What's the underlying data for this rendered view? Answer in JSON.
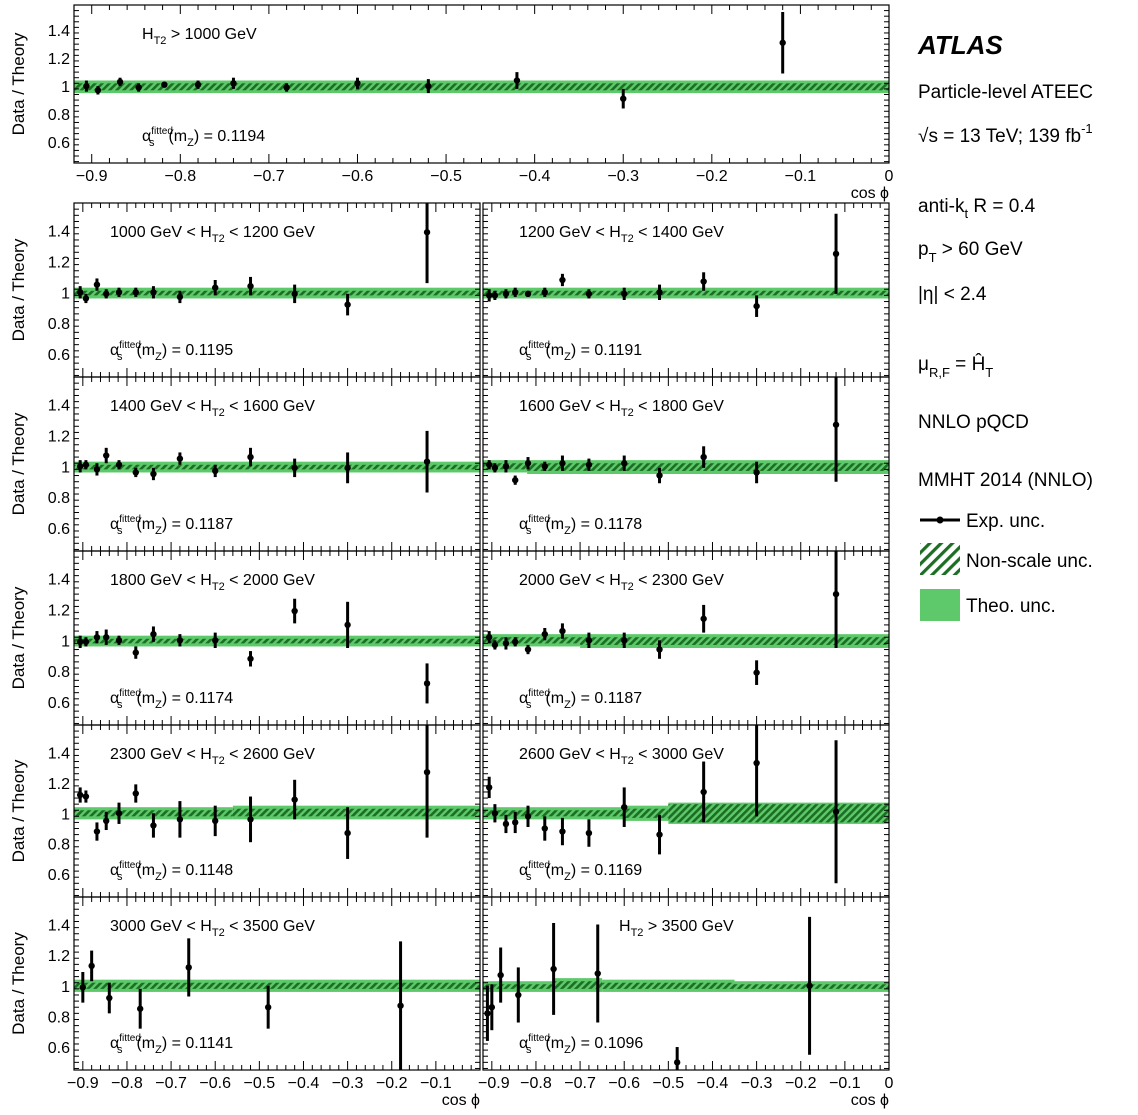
{
  "chart_data": {
    "type": "scatter",
    "experiment": "ATLAS",
    "xlabel": "cos ϕ",
    "ylabel": "Data / Theory",
    "xlim": [
      -0.92,
      0.0
    ],
    "ylim": [
      0.45,
      1.58
    ],
    "x_ticks": [
      -0.9,
      -0.8,
      -0.7,
      -0.6,
      -0.5,
      -0.4,
      -0.3,
      -0.2,
      -0.1,
      0
    ],
    "x_tick_labels": [
      "−0.9",
      "−0.8",
      "−0.7",
      "−0.6",
      "−0.5",
      "−0.4",
      "−0.3",
      "−0.2",
      "−0.1",
      "0"
    ],
    "y_ticks": [
      0.6,
      0.8,
      1.0,
      1.2,
      1.4
    ],
    "y_tick_labels": [
      "0.6",
      "0.8",
      "1",
      "1.2",
      "1.4"
    ],
    "info_lines": {
      "process": "Particle-level ATEEC",
      "sqrt": "√",
      "energy": "s = 13 TeV; 139 fb",
      "lumi_exp": "-1",
      "jet_algo": "anti-k",
      "jet_algo_sub": "t",
      "jet_radius": " R = 0.4",
      "pt": "p",
      "pt_sub": "T",
      "pt_cut": " > 60 GeV",
      "eta_cut": "|η| < 2.4",
      "scale_mu": "μ",
      "scale_sub": "R,F",
      "scale_eq": " = ",
      "scale_ht": "Ĥ",
      "scale_ht_sub": "T",
      "order": "NNLO pQCD",
      "pdf": "MMHT 2014 (NNLO)"
    },
    "legend": [
      {
        "label": "Exp. unc.",
        "style": "marker"
      },
      {
        "label": "Non-scale unc.",
        "style": "hatch"
      },
      {
        "label": "Theo. unc.",
        "style": "fill"
      }
    ],
    "colors": {
      "theo_band": "#5ec96a",
      "hatch": "#1b6e24",
      "marker": "#000000"
    },
    "alpha_label": {
      "symbol": "α",
      "sub": "s",
      "sup": "fitted",
      "arg_open": "(m",
      "arg_sub": "Z",
      "arg_close": ")"
    },
    "panels": [
      {
        "label_pre": "H",
        "label_sub": "T2",
        "label_post": " > 1000 GeV",
        "alpha_value": " = 0.1194",
        "band": [
          [
            -0.92,
            0.95,
            1.04,
            0.97,
            1.02
          ]
        ],
        "points": [
          [
            -0.906,
            1.0,
            0.04
          ],
          [
            -0.893,
            0.97,
            0.03
          ],
          [
            -0.868,
            1.03,
            0.03
          ],
          [
            -0.847,
            0.99,
            0.03
          ],
          [
            -0.818,
            1.01,
            0.02
          ],
          [
            -0.78,
            1.01,
            0.03
          ],
          [
            -0.74,
            1.02,
            0.04
          ],
          [
            -0.68,
            0.99,
            0.03
          ],
          [
            -0.6,
            1.02,
            0.04
          ],
          [
            -0.52,
            1.0,
            0.05
          ],
          [
            -0.42,
            1.04,
            0.06
          ],
          [
            -0.3,
            0.91,
            0.07
          ],
          [
            -0.12,
            1.31,
            0.22
          ]
        ]
      },
      {
        "label_pre": "1000 GeV < H",
        "label_sub": "T2",
        "label_post": " < 1200 GeV",
        "alpha_value": " = 0.1195",
        "band": [
          [
            -0.92,
            0.96,
            1.03,
            0.98,
            1.01
          ]
        ],
        "points": [
          [
            -0.906,
            1.0,
            0.04
          ],
          [
            -0.893,
            0.96,
            0.03
          ],
          [
            -0.868,
            1.05,
            0.04
          ],
          [
            -0.847,
            0.99,
            0.03
          ],
          [
            -0.818,
            1.0,
            0.03
          ],
          [
            -0.78,
            1.0,
            0.03
          ],
          [
            -0.74,
            1.0,
            0.04
          ],
          [
            -0.68,
            0.97,
            0.04
          ],
          [
            -0.6,
            1.03,
            0.05
          ],
          [
            -0.52,
            1.04,
            0.06
          ],
          [
            -0.42,
            0.99,
            0.06
          ],
          [
            -0.3,
            0.92,
            0.07
          ],
          [
            -0.12,
            1.39,
            0.33
          ]
        ]
      },
      {
        "label_pre": "1200 GeV < H",
        "label_sub": "T2",
        "label_post": " < 1400 GeV",
        "alpha_value": " = 0.1191",
        "band": [
          [
            -0.92,
            0.96,
            1.03,
            0.98,
            1.01
          ]
        ],
        "points": [
          [
            -0.906,
            0.98,
            0.04
          ],
          [
            -0.893,
            0.98,
            0.03
          ],
          [
            -0.868,
            0.99,
            0.03
          ],
          [
            -0.847,
            1.0,
            0.03
          ],
          [
            -0.818,
            0.99,
            0.02
          ],
          [
            -0.78,
            1.0,
            0.03
          ],
          [
            -0.74,
            1.08,
            0.04
          ],
          [
            -0.68,
            0.99,
            0.03
          ],
          [
            -0.6,
            0.99,
            0.04
          ],
          [
            -0.52,
            1.0,
            0.05
          ],
          [
            -0.42,
            1.07,
            0.06
          ],
          [
            -0.3,
            0.91,
            0.07
          ],
          [
            -0.12,
            1.25,
            0.26
          ]
        ]
      },
      {
        "label_pre": "1400 GeV < H",
        "label_sub": "T2",
        "label_post": " < 1600 GeV",
        "alpha_value": " = 0.1187",
        "band": [
          [
            -0.92,
            0.96,
            1.03,
            0.98,
            1.01
          ]
        ],
        "points": [
          [
            -0.906,
            1.0,
            0.04
          ],
          [
            -0.893,
            1.01,
            0.03
          ],
          [
            -0.868,
            0.98,
            0.04
          ],
          [
            -0.847,
            1.07,
            0.05
          ],
          [
            -0.818,
            1.01,
            0.03
          ],
          [
            -0.78,
            0.96,
            0.03
          ],
          [
            -0.74,
            0.95,
            0.04
          ],
          [
            -0.68,
            1.05,
            0.04
          ],
          [
            -0.6,
            0.97,
            0.04
          ],
          [
            -0.52,
            1.06,
            0.06
          ],
          [
            -0.42,
            0.99,
            0.06
          ],
          [
            -0.3,
            0.99,
            0.1
          ],
          [
            -0.12,
            1.03,
            0.2
          ]
        ]
      },
      {
        "label_pre": "1600 GeV < H",
        "label_sub": "T2",
        "label_post": " < 1800 GeV",
        "alpha_value": " = 0.1178",
        "band": [
          [
            -0.92,
            0.96,
            1.04,
            0.98,
            1.02
          ],
          [
            -0.82,
            0.95,
            1.04,
            0.97,
            1.02
          ]
        ],
        "points": [
          [
            -0.906,
            1.01,
            0.03
          ],
          [
            -0.893,
            0.99,
            0.03
          ],
          [
            -0.868,
            1.0,
            0.04
          ],
          [
            -0.847,
            0.91,
            0.03
          ],
          [
            -0.818,
            1.02,
            0.04
          ],
          [
            -0.78,
            1.0,
            0.03
          ],
          [
            -0.74,
            1.02,
            0.05
          ],
          [
            -0.68,
            1.01,
            0.04
          ],
          [
            -0.6,
            1.02,
            0.05
          ],
          [
            -0.52,
            0.94,
            0.05
          ],
          [
            -0.42,
            1.06,
            0.07
          ],
          [
            -0.3,
            0.96,
            0.07
          ],
          [
            -0.12,
            1.27,
            0.37
          ]
        ]
      },
      {
        "label_pre": "1800 GeV < H",
        "label_sub": "T2",
        "label_post": " < 2000 GeV",
        "alpha_value": " = 0.1174",
        "band": [
          [
            -0.92,
            0.96,
            1.03,
            0.98,
            1.01
          ]
        ],
        "points": [
          [
            -0.906,
            0.99,
            0.04
          ],
          [
            -0.893,
            0.99,
            0.03
          ],
          [
            -0.868,
            1.02,
            0.04
          ],
          [
            -0.847,
            1.02,
            0.05
          ],
          [
            -0.818,
            1.0,
            0.03
          ],
          [
            -0.78,
            0.92,
            0.04
          ],
          [
            -0.74,
            1.04,
            0.05
          ],
          [
            -0.68,
            1.0,
            0.04
          ],
          [
            -0.6,
            1.0,
            0.05
          ],
          [
            -0.52,
            0.88,
            0.05
          ],
          [
            -0.42,
            1.19,
            0.08
          ],
          [
            -0.3,
            1.1,
            0.15
          ],
          [
            -0.12,
            0.72,
            0.13
          ]
        ]
      },
      {
        "label_pre": "2000 GeV < H",
        "label_sub": "T2",
        "label_post": " < 2300 GeV",
        "alpha_value": " = 0.1187",
        "band": [
          [
            -0.92,
            0.96,
            1.04,
            0.98,
            1.02
          ],
          [
            -0.7,
            0.95,
            1.04,
            0.97,
            1.02
          ]
        ],
        "points": [
          [
            -0.906,
            1.02,
            0.04
          ],
          [
            -0.893,
            0.97,
            0.03
          ],
          [
            -0.868,
            0.98,
            0.04
          ],
          [
            -0.847,
            0.99,
            0.03
          ],
          [
            -0.818,
            0.94,
            0.03
          ],
          [
            -0.78,
            1.04,
            0.04
          ],
          [
            -0.74,
            1.06,
            0.05
          ],
          [
            -0.68,
            1.0,
            0.05
          ],
          [
            -0.6,
            1.0,
            0.05
          ],
          [
            -0.52,
            0.94,
            0.06
          ],
          [
            -0.42,
            1.14,
            0.09
          ],
          [
            -0.3,
            0.79,
            0.08
          ],
          [
            -0.12,
            1.3,
            0.35
          ]
        ]
      },
      {
        "label_pre": "2300 GeV < H",
        "label_sub": "T2",
        "label_post": " < 2600 GeV",
        "alpha_value": " = 0.1148",
        "band": [
          [
            -0.92,
            0.96,
            1.04,
            0.98,
            1.02
          ],
          [
            -0.56,
            0.96,
            1.05,
            0.98,
            1.03
          ]
        ],
        "points": [
          [
            -0.906,
            1.12,
            0.05
          ],
          [
            -0.893,
            1.11,
            0.04
          ],
          [
            -0.868,
            0.88,
            0.06
          ],
          [
            -0.847,
            0.95,
            0.06
          ],
          [
            -0.818,
            1.0,
            0.07
          ],
          [
            -0.78,
            1.13,
            0.06
          ],
          [
            -0.74,
            0.92,
            0.08
          ],
          [
            -0.68,
            0.96,
            0.12
          ],
          [
            -0.6,
            0.95,
            0.1
          ],
          [
            -0.52,
            0.96,
            0.15
          ],
          [
            -0.42,
            1.09,
            0.13
          ],
          [
            -0.3,
            0.87,
            0.17
          ],
          [
            -0.12,
            1.27,
            0.43
          ]
        ]
      },
      {
        "label_pre": "2600 GeV < H",
        "label_sub": "T2",
        "label_post": " < 3000 GeV",
        "alpha_value": " = 0.1169",
        "band": [
          [
            -0.92,
            0.96,
            1.04,
            0.98,
            1.02
          ],
          [
            -0.6,
            0.95,
            1.05,
            0.97,
            1.03
          ],
          [
            -0.5,
            0.93,
            1.07,
            0.94,
            1.06
          ]
        ],
        "points": [
          [
            -0.906,
            1.17,
            0.07
          ],
          [
            -0.893,
            1.0,
            0.06
          ],
          [
            -0.868,
            0.93,
            0.06
          ],
          [
            -0.847,
            0.94,
            0.07
          ],
          [
            -0.818,
            0.98,
            0.07
          ],
          [
            -0.78,
            0.9,
            0.08
          ],
          [
            -0.74,
            0.88,
            0.09
          ],
          [
            -0.68,
            0.87,
            0.09
          ],
          [
            -0.6,
            1.04,
            0.13
          ],
          [
            -0.52,
            0.86,
            0.13
          ],
          [
            -0.42,
            1.14,
            0.2
          ],
          [
            -0.3,
            1.33,
            0.35
          ],
          [
            -0.12,
            1.01,
            0.47
          ]
        ]
      },
      {
        "label_pre": "3000 GeV < H",
        "label_sub": "T2",
        "label_post": " < 3500 GeV",
        "alpha_value": " = 0.1141",
        "band": [
          [
            -0.92,
            0.96,
            1.04,
            0.98,
            1.02
          ]
        ],
        "points": [
          [
            -0.9,
            0.99,
            0.1
          ],
          [
            -0.88,
            1.13,
            0.1
          ],
          [
            -0.84,
            0.92,
            0.1
          ],
          [
            -0.77,
            0.85,
            0.13
          ],
          [
            -0.66,
            1.12,
            0.19
          ],
          [
            -0.48,
            0.86,
            0.14
          ],
          [
            -0.18,
            0.87,
            0.42
          ]
        ]
      },
      {
        "label_pre": "H",
        "label_sub": "T2",
        "label_post": " > 3500 GeV",
        "alpha_value": " = 0.1096",
        "band": [
          [
            -0.92,
            0.96,
            1.03,
            0.98,
            1.01
          ],
          [
            -0.76,
            0.96,
            1.05,
            0.98,
            1.03
          ],
          [
            -0.65,
            0.96,
            1.04,
            0.98,
            1.02
          ],
          [
            -0.35,
            0.96,
            1.03,
            0.98,
            1.01
          ]
        ],
        "points": [
          [
            -0.91,
            0.82,
            0.18
          ],
          [
            -0.9,
            0.86,
            0.15
          ],
          [
            -0.88,
            1.07,
            0.18
          ],
          [
            -0.84,
            0.94,
            0.18
          ],
          [
            -0.76,
            1.11,
            0.3
          ],
          [
            -0.66,
            1.08,
            0.32
          ],
          [
            -0.48,
            0.5,
            0.1
          ],
          [
            -0.18,
            1.0,
            0.45
          ]
        ]
      }
    ]
  }
}
